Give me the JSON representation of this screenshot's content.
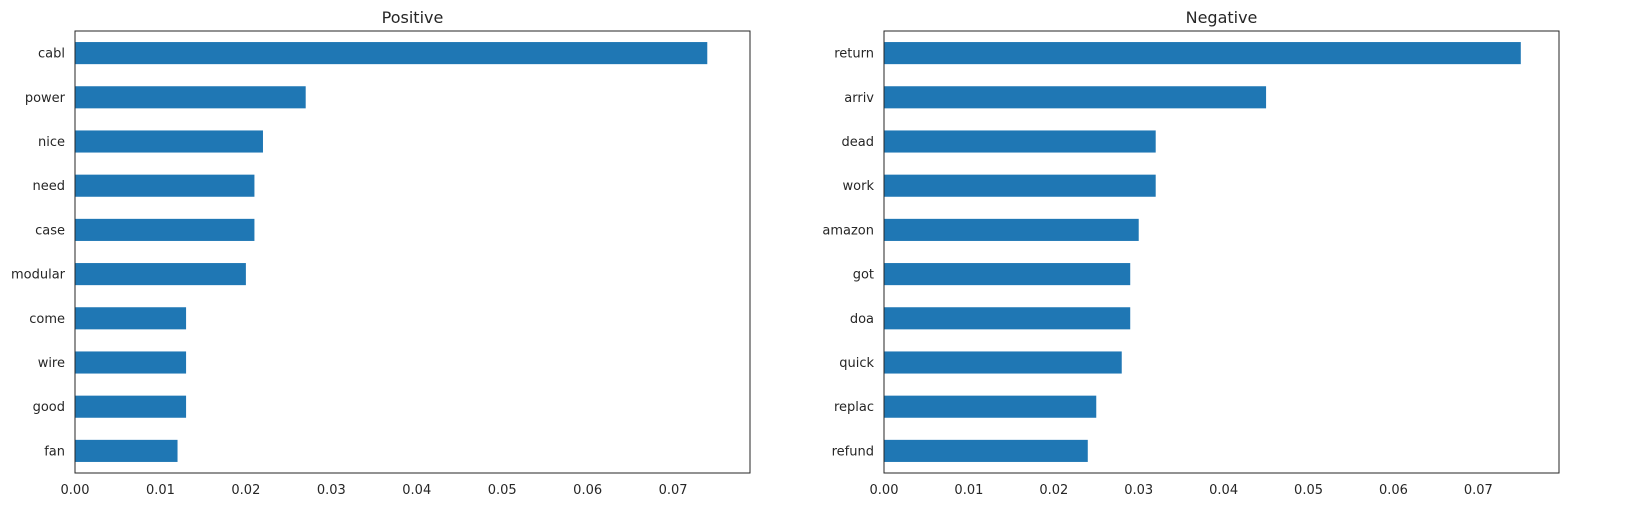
{
  "chart_data": [
    {
      "type": "bar",
      "orientation": "horizontal",
      "title": "Positive",
      "xlabel": "",
      "ylabel": "",
      "categories": [
        "cabl",
        "power",
        "nice",
        "need",
        "case",
        "modular",
        "come",
        "wire",
        "good",
        "fan"
      ],
      "values": [
        0.074,
        0.027,
        0.022,
        0.021,
        0.021,
        0.02,
        0.013,
        0.013,
        0.013,
        0.012
      ],
      "xlim": [
        0,
        0.079
      ],
      "xticks": [
        "0.00",
        "0.01",
        "0.02",
        "0.03",
        "0.04",
        "0.05",
        "0.06",
        "0.07"
      ],
      "bar_color": "#1f77b4",
      "grid": false,
      "legend": "none"
    },
    {
      "type": "bar",
      "orientation": "horizontal",
      "title": "Negative",
      "xlabel": "",
      "ylabel": "",
      "categories": [
        "return",
        "arriv",
        "dead",
        "work",
        "amazon",
        "got",
        "doa",
        "quick",
        "replac",
        "refund"
      ],
      "values": [
        0.075,
        0.045,
        0.032,
        0.032,
        0.03,
        0.029,
        0.029,
        0.028,
        0.025,
        0.024
      ],
      "xlim": [
        0,
        0.0795
      ],
      "xticks": [
        "0.00",
        "0.01",
        "0.02",
        "0.03",
        "0.04",
        "0.05",
        "0.06",
        "0.07"
      ],
      "bar_color": "#1f77b4",
      "grid": false,
      "legend": "none"
    }
  ]
}
